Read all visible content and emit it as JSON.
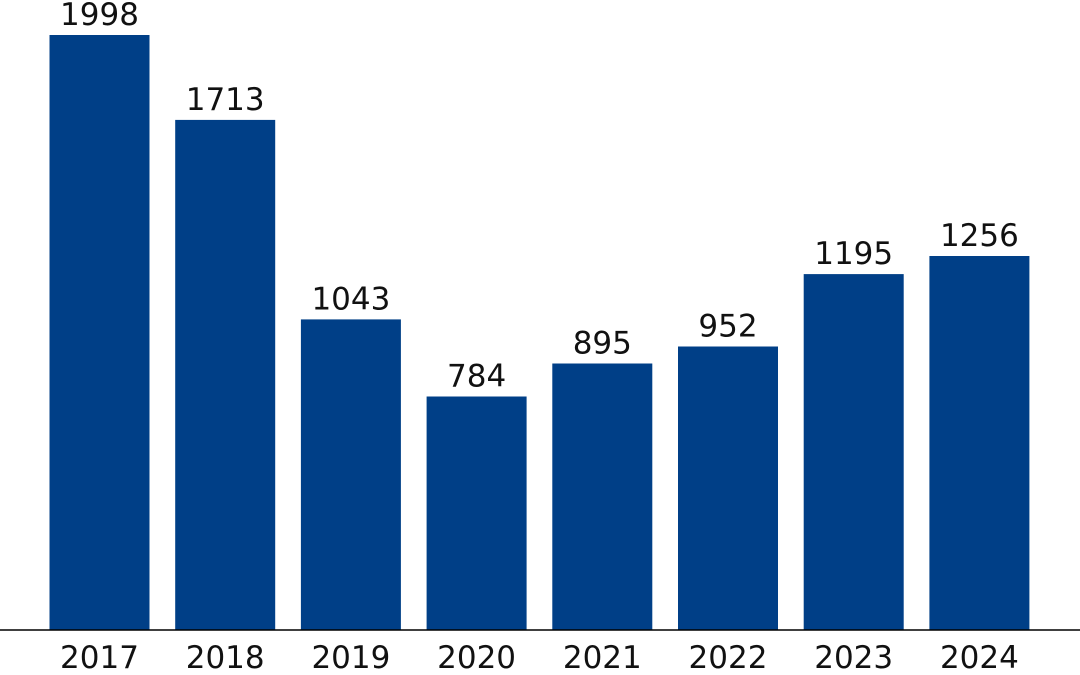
{
  "chart_data": {
    "type": "bar",
    "title": "",
    "xlabel": "",
    "ylabel": "",
    "categories": [
      "2017",
      "2018",
      "2019",
      "2020",
      "2021",
      "2022",
      "2023",
      "2024"
    ],
    "values": [
      1998,
      1713,
      1043,
      784,
      895,
      952,
      1195,
      1256
    ],
    "data_labels": [
      "1998",
      "1713",
      "1043",
      "784",
      "895",
      "952",
      "1195",
      "1256"
    ],
    "ylim": [
      0,
      1998
    ],
    "grid": false,
    "legend": "none",
    "bar_color": "#003f87",
    "label_color": "#111111",
    "highlight_category": "2024",
    "highlight_label_color": "#ff0000",
    "axis_color": "#000000"
  }
}
